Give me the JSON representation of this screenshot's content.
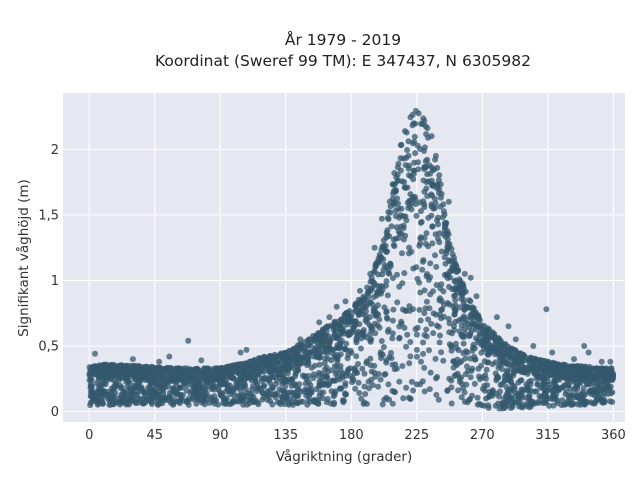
{
  "chart_data": {
    "type": "scatter",
    "title_lines": [
      "År 1979 - 2019",
      "Koordinat (Sweref 99 TM): E 347437, N 6305982"
    ],
    "xlabel": "Vågriktning (grader)",
    "ylabel": "Signifikant våghöjd (m)",
    "xlim": [
      -18,
      368
    ],
    "ylim": [
      -0.08,
      2.43
    ],
    "x_ticks": [
      0,
      45,
      90,
      135,
      180,
      225,
      270,
      315,
      360
    ],
    "x_tick_labels": [
      "0",
      "45",
      "90",
      "135",
      "180",
      "225",
      "270",
      "315",
      "360"
    ],
    "y_ticks": [
      0,
      0.5,
      1,
      1.5,
      2
    ],
    "y_tick_labels": [
      "0",
      "0,5",
      "1",
      "1,5",
      "2"
    ],
    "grid": true,
    "legend": "none",
    "colors": {
      "marker": "#34586e",
      "plot_bg": "#e5e8f0",
      "grid": "#ffffff"
    },
    "envelope": {
      "x": [
        0,
        10,
        30,
        60,
        90,
        110,
        120,
        135,
        150,
        165,
        180,
        190,
        200,
        205,
        210,
        215,
        220,
        225,
        230,
        235,
        240,
        245,
        250,
        255,
        260,
        270,
        285,
        300,
        315,
        330,
        345,
        360
      ],
      "y_min": [
        0.04,
        0.05,
        0.05,
        0.05,
        0.05,
        0.05,
        0.05,
        0.05,
        0.05,
        0.05,
        0.05,
        0.05,
        0.05,
        0.05,
        0.05,
        0.05,
        0.05,
        0.05,
        0.05,
        0.05,
        0.05,
        0.05,
        0.05,
        0.05,
        0.03,
        0.02,
        0.02,
        0.03,
        0.04,
        0.05,
        0.05,
        0.07
      ],
      "y_max": [
        0.34,
        0.36,
        0.35,
        0.33,
        0.33,
        0.38,
        0.42,
        0.45,
        0.55,
        0.66,
        0.78,
        0.92,
        1.22,
        1.5,
        1.85,
        2.1,
        2.25,
        2.3,
        2.25,
        2.12,
        1.85,
        1.45,
        1.2,
        1.02,
        0.88,
        0.68,
        0.52,
        0.42,
        0.38,
        0.35,
        0.34,
        0.33
      ]
    },
    "outliers": [
      [
        4,
        0.44
      ],
      [
        2,
        0.32
      ],
      [
        30,
        0.4
      ],
      [
        48,
        0.38
      ],
      [
        55,
        0.42
      ],
      [
        68,
        0.54
      ],
      [
        77,
        0.39
      ],
      [
        104,
        0.45
      ],
      [
        108,
        0.47
      ],
      [
        128,
        0.42
      ],
      [
        145,
        0.55
      ],
      [
        158,
        0.68
      ],
      [
        165,
        0.72
      ],
      [
        170,
        0.8
      ],
      [
        176,
        0.84
      ],
      [
        186,
        0.92
      ],
      [
        193,
        1.05
      ],
      [
        196,
        1.25
      ],
      [
        201,
        1.47
      ],
      [
        247,
        1.6
      ],
      [
        258,
        1.05
      ],
      [
        262,
        1.02
      ],
      [
        266,
        0.88
      ],
      [
        280,
        0.72
      ],
      [
        288,
        0.65
      ],
      [
        293,
        0.55
      ],
      [
        305,
        0.5
      ],
      [
        306,
        0.36
      ],
      [
        314,
        0.78
      ],
      [
        318,
        0.45
      ],
      [
        333,
        0.4
      ],
      [
        340,
        0.5
      ],
      [
        343,
        0.45
      ],
      [
        352,
        0.38
      ],
      [
        358,
        0.38
      ]
    ]
  }
}
